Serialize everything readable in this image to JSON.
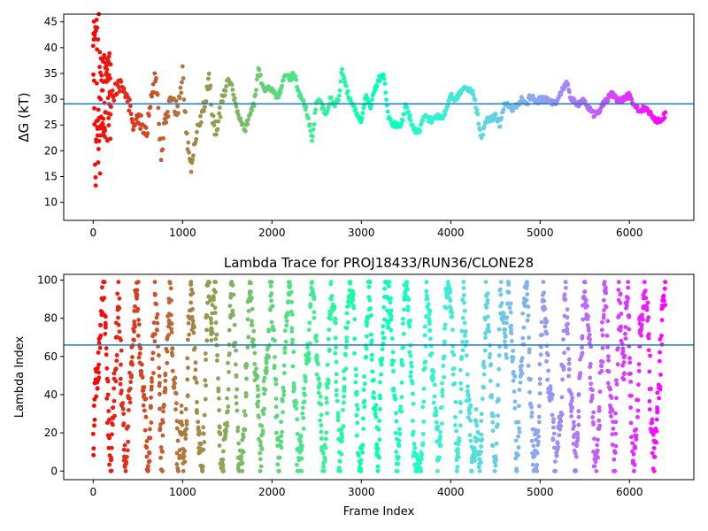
{
  "chart_data": [
    {
      "type": "scatter",
      "title": "",
      "xlabel": "",
      "ylabel": "ΔG (kT)",
      "xlim": [
        -330,
        6720
      ],
      "ylim": [
        6.5,
        46.5
      ],
      "x_ticks": [
        0,
        1000,
        2000,
        3000,
        4000,
        5000,
        6000
      ],
      "y_ticks": [
        10,
        15,
        20,
        25,
        30,
        35,
        40,
        45
      ],
      "hline": 29.1,
      "hline_color": "#1f77b4",
      "colormap": "rainbow (red at frame 0 → violet at last frame)",
      "n_frames": 6400,
      "trace": [
        [
          0,
          40
        ],
        [
          60,
          32
        ],
        [
          120,
          28
        ],
        [
          200,
          30
        ],
        [
          300,
          33
        ],
        [
          400,
          29
        ],
        [
          450,
          25
        ],
        [
          500,
          26
        ],
        [
          600,
          24
        ],
        [
          700,
          35
        ],
        [
          760,
          19
        ],
        [
          800,
          26
        ],
        [
          860,
          29
        ],
        [
          950,
          28
        ],
        [
          1000,
          35
        ],
        [
          1050,
          22
        ],
        [
          1100,
          17
        ],
        [
          1150,
          23
        ],
        [
          1200,
          26
        ],
        [
          1250,
          29
        ],
        [
          1300,
          34
        ],
        [
          1350,
          24
        ],
        [
          1400,
          25
        ],
        [
          1450,
          31
        ],
        [
          1500,
          34
        ],
        [
          1550,
          33
        ],
        [
          1600,
          28
        ],
        [
          1650,
          26
        ],
        [
          1700,
          24
        ],
        [
          1750,
          27
        ],
        [
          1800,
          29
        ],
        [
          1850,
          36
        ],
        [
          1900,
          32
        ],
        [
          1950,
          32
        ],
        [
          2000,
          32
        ],
        [
          2050,
          30
        ],
        [
          2100,
          32
        ],
        [
          2150,
          35
        ],
        [
          2200,
          34
        ],
        [
          2250,
          35
        ],
        [
          2300,
          31
        ],
        [
          2350,
          30
        ],
        [
          2400,
          27
        ],
        [
          2450,
          22
        ],
        [
          2500,
          30
        ],
        [
          2550,
          29
        ],
        [
          2600,
          27
        ],
        [
          2650,
          30
        ],
        [
          2700,
          29
        ],
        [
          2750,
          30
        ],
        [
          2780,
          36
        ],
        [
          2820,
          33
        ],
        [
          2850,
          31
        ],
        [
          2900,
          29
        ],
        [
          2950,
          27
        ],
        [
          3000,
          26
        ],
        [
          3050,
          31
        ],
        [
          3100,
          28
        ],
        [
          3150,
          32
        ],
        [
          3200,
          34
        ],
        [
          3250,
          35
        ],
        [
          3300,
          27
        ],
        [
          3350,
          25
        ],
        [
          3400,
          25
        ],
        [
          3450,
          25
        ],
        [
          3500,
          29
        ],
        [
          3550,
          26
        ],
        [
          3600,
          24
        ],
        [
          3650,
          24
        ],
        [
          3700,
          27
        ],
        [
          3750,
          26
        ],
        [
          3800,
          26
        ],
        [
          3850,
          27
        ],
        [
          3900,
          26
        ],
        [
          3950,
          28
        ],
        [
          4000,
          31
        ],
        [
          4050,
          30
        ],
        [
          4100,
          31
        ],
        [
          4150,
          32
        ],
        [
          4200,
          32
        ],
        [
          4250,
          31
        ],
        [
          4300,
          27
        ],
        [
          4340,
          22
        ],
        [
          4400,
          26
        ],
        [
          4450,
          26
        ],
        [
          4500,
          27
        ],
        [
          4550,
          25
        ],
        [
          4600,
          29
        ],
        [
          4650,
          29
        ],
        [
          4700,
          28
        ],
        [
          4750,
          29
        ],
        [
          4800,
          30
        ],
        [
          4850,
          29
        ],
        [
          4900,
          31
        ],
        [
          4950,
          29
        ],
        [
          5000,
          30
        ],
        [
          5050,
          30
        ],
        [
          5100,
          30
        ],
        [
          5150,
          29
        ],
        [
          5200,
          30
        ],
        [
          5250,
          32
        ],
        [
          5300,
          33
        ],
        [
          5350,
          30
        ],
        [
          5400,
          29
        ],
        [
          5450,
          29
        ],
        [
          5500,
          30
        ],
        [
          5550,
          28
        ],
        [
          5600,
          27
        ],
        [
          5650,
          27
        ],
        [
          5700,
          29
        ],
        [
          5750,
          30
        ],
        [
          5800,
          31
        ],
        [
          5850,
          30
        ],
        [
          5900,
          30
        ],
        [
          5950,
          30
        ],
        [
          6000,
          31
        ],
        [
          6050,
          29
        ],
        [
          6100,
          28
        ],
        [
          6150,
          28
        ],
        [
          6200,
          28
        ],
        [
          6250,
          27
        ],
        [
          6300,
          26
        ],
        [
          6350,
          26
        ],
        [
          6400,
          27
        ]
      ]
    },
    {
      "type": "scatter",
      "title": "Lambda Trace for PROJ18433/RUN36/CLONE28",
      "xlabel": "Frame Index",
      "ylabel": "Lambda Index",
      "xlim": [
        -330,
        6720
      ],
      "ylim": [
        -4.5,
        103
      ],
      "x_ticks": [
        0,
        1000,
        2000,
        3000,
        4000,
        5000,
        6000
      ],
      "y_ticks": [
        0,
        20,
        40,
        60,
        80,
        100
      ],
      "hline": 66,
      "hline_color": "#1f77b4",
      "colormap": "rainbow (red at frame 0 → violet at last frame)",
      "n_frames": 6400,
      "lambda_range": [
        0,
        99
      ]
    }
  ]
}
